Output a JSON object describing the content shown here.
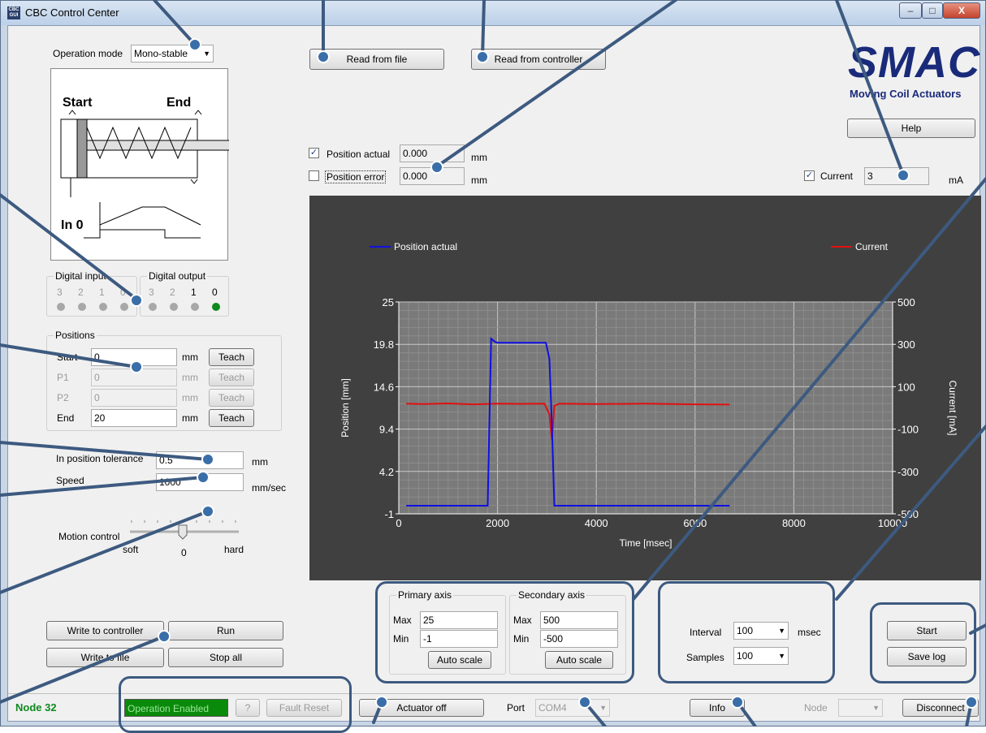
{
  "window": {
    "title": "CBC Control Center",
    "icon_text": "CBC GUI",
    "minimize": "–",
    "maximize": "□",
    "close": "X"
  },
  "operation_mode": {
    "label": "Operation mode",
    "value": "Mono-stable"
  },
  "diagram": {
    "start": "Start",
    "end": "End",
    "input": "In 0"
  },
  "digital_input": {
    "title": "Digital input",
    "bits": [
      "3",
      "2",
      "1",
      "0"
    ]
  },
  "digital_output": {
    "title": "Digital output",
    "bits": [
      "3",
      "2",
      "1",
      "0"
    ]
  },
  "positions": {
    "title": "Positions",
    "unit": "mm",
    "teach": "Teach",
    "rows": [
      {
        "label": "Start",
        "value": "0"
      },
      {
        "label": "P1",
        "value": "0"
      },
      {
        "label": "P2",
        "value": "0"
      },
      {
        "label": "End",
        "value": "20"
      }
    ]
  },
  "tolerance": {
    "label": "In position tolerance",
    "value": "0.5",
    "unit": "mm"
  },
  "speed": {
    "label": "Speed",
    "value": "1000",
    "unit": "mm/sec"
  },
  "motion": {
    "label": "Motion control",
    "soft": "soft",
    "mid": "0",
    "hard": "hard"
  },
  "buttons": {
    "write_controller": "Write to controller",
    "write_file": "Write to file",
    "run": "Run",
    "stop_all": "Stop all",
    "read_file": "Read from file",
    "read_controller": "Read from controller",
    "help": "Help",
    "start": "Start",
    "save_log": "Save log"
  },
  "logo": {
    "name": "SMAC",
    "tagline": "Moving Coil Actuators"
  },
  "readouts": {
    "position_actual": {
      "label": "Position actual",
      "value": "0.000",
      "unit": "mm"
    },
    "position_error": {
      "label": "Position error",
      "value": "0.000",
      "unit": "mm"
    },
    "current": {
      "label": "Current",
      "value": "3",
      "unit": "mA"
    }
  },
  "chart_data": {
    "type": "line",
    "xlabel": "Time [msec]",
    "ylabel": "Position [mm]",
    "y2label": "Current [mA]",
    "xlim": [
      0,
      10000
    ],
    "ylim": [
      -1,
      25
    ],
    "y2lim": [
      -500,
      500
    ],
    "x_ticks": [
      "0",
      "2000",
      "4000",
      "6000",
      "8000",
      "10000"
    ],
    "y_ticks": [
      "25",
      "19.8",
      "14.6",
      "9.4",
      "4.2",
      "-1"
    ],
    "y2_ticks": [
      "500",
      "300",
      "100",
      "-100",
      "-300",
      "-500"
    ],
    "legend": [
      "Position actual",
      "Current"
    ],
    "series": [
      {
        "name": "Position actual",
        "color": "#1010e0",
        "x": [
          150,
          1800,
          1870,
          1950,
          2000,
          2500,
          2980,
          3050,
          3100,
          3150,
          3200,
          4000,
          5000,
          6000,
          6700
        ],
        "y": [
          0,
          0,
          20.5,
          20.1,
          20.0,
          20.0,
          20.0,
          18.0,
          10.0,
          0,
          0,
          0,
          0,
          0,
          0
        ]
      },
      {
        "name": "Current",
        "color": "#e01010",
        "x": [
          150,
          500,
          1000,
          1500,
          2000,
          2500,
          2950,
          3050,
          3100,
          3150,
          3250,
          4000,
          5000,
          6000,
          6700
        ],
        "y": [
          20,
          18,
          21,
          17,
          20,
          19,
          20,
          -30,
          -150,
          10,
          20,
          18,
          20,
          17,
          16
        ]
      }
    ]
  },
  "primary_axis": {
    "title": "Primary axis",
    "max_label": "Max",
    "max": "25",
    "min_label": "Min",
    "min": "-1",
    "auto": "Auto scale"
  },
  "secondary_axis": {
    "title": "Secondary axis",
    "max_label": "Max",
    "max": "500",
    "min_label": "Min",
    "min": "-500",
    "auto": "Auto scale"
  },
  "sampling": {
    "interval_label": "Interval",
    "interval": "100",
    "interval_unit": "msec",
    "samples_label": "Samples",
    "samples": "100"
  },
  "status_bar": {
    "node": "Node 32",
    "state": "Operation Enabled",
    "help": "?",
    "fault_reset": "Fault Reset",
    "actuator_off": "Actuator off",
    "port_label": "Port",
    "port": "COM4",
    "info": "Info",
    "node_label": "Node",
    "node_value": "",
    "disconnect": "Disconnect"
  },
  "colors": {
    "plot_bg": "#404040",
    "grid": "#8a8a8a",
    "annotation": "#3d5a80",
    "status_ok": "#0f8a1e"
  }
}
